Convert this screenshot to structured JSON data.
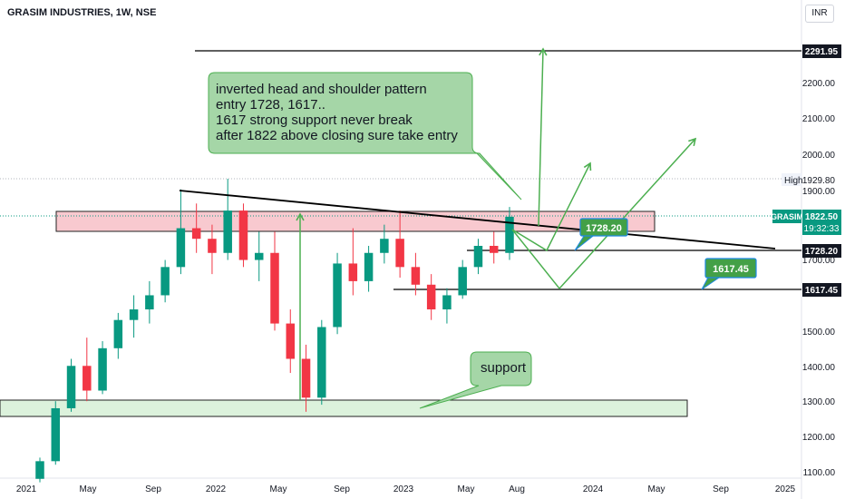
{
  "header": {
    "symbol_line": "GRASIM INDUSTRIES, 1W, NSE",
    "currency": "INR"
  },
  "price_axis": {
    "labels": [
      "2200.00",
      "2100.00",
      "2000.00",
      "1900.00",
      "1700.00",
      "1500.00",
      "1400.00",
      "1300.00",
      "1200.00",
      "1100.00"
    ],
    "high_label": "High",
    "high_value": "1929.80",
    "current_symbol": "GRASIM",
    "current_price": "1822.50",
    "countdown": "19:32:33",
    "tag_2291": "2291.95",
    "tag_1728": "1728.20",
    "tag_1617": "1617.45"
  },
  "time_axis": {
    "labels": [
      "2021",
      "May",
      "Sep",
      "2022",
      "May",
      "Sep",
      "2023",
      "May",
      "Aug",
      "2024",
      "May",
      "Sep",
      "2025"
    ]
  },
  "annotations": {
    "main_note": [
      "inverted head and shoulder pattern",
      "entry 1728, 1617..",
      "1617 strong support never break",
      "after 1822 above closing sure take entry"
    ],
    "support_note": "support",
    "label_1728": "1728.20",
    "label_1617": "1617.45"
  },
  "colors": {
    "up": "#089981",
    "down": "#f23645",
    "note_fill": "#a5d6a7",
    "note_border": "#4caf50",
    "zone_red": "#f8c9cf",
    "zone_green": "#dcf2dc",
    "arrow_green": "#4caf50",
    "label_green": "#43a047",
    "label_border": "#1e88e5"
  },
  "chart_data": {
    "type": "candlestick",
    "interval": "1W",
    "y_range": [
      1085,
      2325
    ],
    "levels": [
      2291.95,
      1929.8,
      1822.5,
      1728.2,
      1617.45
    ],
    "trendline": [
      [
        "2021-09",
        1900
      ],
      [
        "2024-11",
        1722
      ]
    ],
    "resistance_zone": [
      1783,
      1843
    ],
    "support_zone": [
      1262,
      1310
    ],
    "series": [
      {
        "period": "2021-01",
        "open": 1080,
        "high": 1140,
        "low": 1070,
        "close": 1130
      },
      {
        "period": "2021-02",
        "open": 1130,
        "high": 1300,
        "low": 1120,
        "close": 1280
      },
      {
        "period": "2021-03",
        "open": 1280,
        "high": 1420,
        "low": 1270,
        "close": 1400
      },
      {
        "period": "2021-04",
        "open": 1400,
        "high": 1480,
        "low": 1300,
        "close": 1330
      },
      {
        "period": "2021-05",
        "open": 1330,
        "high": 1470,
        "low": 1320,
        "close": 1450
      },
      {
        "period": "2021-06",
        "open": 1450,
        "high": 1550,
        "low": 1420,
        "close": 1530
      },
      {
        "period": "2021-07",
        "open": 1530,
        "high": 1600,
        "low": 1480,
        "close": 1560
      },
      {
        "period": "2021-08",
        "open": 1560,
        "high": 1640,
        "low": 1520,
        "close": 1600
      },
      {
        "period": "2021-09",
        "open": 1600,
        "high": 1700,
        "low": 1580,
        "close": 1680
      },
      {
        "period": "2021-10",
        "open": 1680,
        "high": 1900,
        "low": 1660,
        "close": 1790
      },
      {
        "period": "2021-11",
        "open": 1790,
        "high": 1860,
        "low": 1720,
        "close": 1760
      },
      {
        "period": "2021-12",
        "open": 1760,
        "high": 1800,
        "low": 1660,
        "close": 1720
      },
      {
        "period": "2022-01",
        "open": 1720,
        "high": 1930,
        "low": 1700,
        "close": 1840
      },
      {
        "period": "2022-02",
        "open": 1840,
        "high": 1860,
        "low": 1680,
        "close": 1700
      },
      {
        "period": "2022-03",
        "open": 1700,
        "high": 1780,
        "low": 1640,
        "close": 1720
      },
      {
        "period": "2022-04",
        "open": 1720,
        "high": 1780,
        "low": 1500,
        "close": 1520
      },
      {
        "period": "2022-05",
        "open": 1520,
        "high": 1560,
        "low": 1380,
        "close": 1420
      },
      {
        "period": "2022-06",
        "open": 1420,
        "high": 1460,
        "low": 1270,
        "close": 1310
      },
      {
        "period": "2022-07",
        "open": 1310,
        "high": 1530,
        "low": 1290,
        "close": 1510
      },
      {
        "period": "2022-08",
        "open": 1510,
        "high": 1720,
        "low": 1490,
        "close": 1690
      },
      {
        "period": "2022-09",
        "open": 1690,
        "high": 1790,
        "low": 1600,
        "close": 1640
      },
      {
        "period": "2022-10",
        "open": 1640,
        "high": 1740,
        "low": 1610,
        "close": 1720
      },
      {
        "period": "2022-11",
        "open": 1720,
        "high": 1800,
        "low": 1690,
        "close": 1760
      },
      {
        "period": "2022-12",
        "open": 1760,
        "high": 1840,
        "low": 1650,
        "close": 1680
      },
      {
        "period": "2023-01",
        "open": 1680,
        "high": 1720,
        "low": 1600,
        "close": 1630
      },
      {
        "period": "2023-02",
        "open": 1630,
        "high": 1660,
        "low": 1530,
        "close": 1560
      },
      {
        "period": "2023-03",
        "open": 1560,
        "high": 1620,
        "low": 1520,
        "close": 1600
      },
      {
        "period": "2023-04",
        "open": 1600,
        "high": 1700,
        "low": 1590,
        "close": 1680
      },
      {
        "period": "2023-05",
        "open": 1680,
        "high": 1760,
        "low": 1660,
        "close": 1740
      },
      {
        "period": "2023-06",
        "open": 1740,
        "high": 1780,
        "low": 1690,
        "close": 1720
      },
      {
        "period": "2023-07",
        "open": 1720,
        "high": 1850,
        "low": 1700,
        "close": 1822.5
      }
    ]
  }
}
